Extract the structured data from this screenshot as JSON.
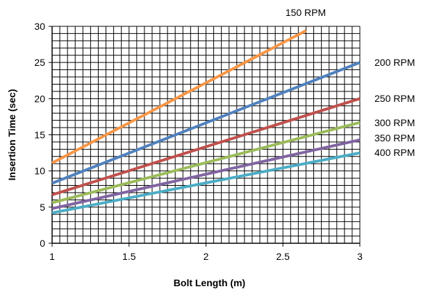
{
  "chart_data": {
    "type": "line",
    "title": "",
    "xlabel": "Bolt Length (m)",
    "ylabel": "Insertion Time (sec)",
    "xlim": [
      1,
      3
    ],
    "ylim": [
      0,
      30
    ],
    "x_ticks": [
      1,
      1.5,
      2,
      2.5,
      3
    ],
    "x_tick_labels": [
      "1",
      "1.5",
      "2",
      "2.5",
      "3"
    ],
    "y_ticks": [
      0,
      5,
      10,
      15,
      20,
      25,
      30
    ],
    "y_tick_labels": [
      "0",
      "5",
      "10",
      "15",
      "20",
      "25",
      "30"
    ],
    "grid": true,
    "legend": "inline labels at line ends",
    "series": [
      {
        "name": "150 RPM",
        "color": "#f79646",
        "x": [
          1,
          2.65
        ],
        "y": [
          11.1,
          29.4
        ]
      },
      {
        "name": "200 RPM",
        "color": "#4f81bd",
        "x": [
          1,
          3
        ],
        "y": [
          8.3,
          25.0
        ]
      },
      {
        "name": "250 RPM",
        "color": "#c0504d",
        "x": [
          1,
          3
        ],
        "y": [
          6.7,
          20.0
        ]
      },
      {
        "name": "300 RPM",
        "color": "#9bbb59",
        "x": [
          1,
          3
        ],
        "y": [
          5.6,
          16.7
        ]
      },
      {
        "name": "350 RPM",
        "color": "#8064a2",
        "x": [
          1,
          3
        ],
        "y": [
          4.8,
          14.3
        ]
      },
      {
        "name": "400 RPM",
        "color": "#4bacc6",
        "x": [
          1,
          3
        ],
        "y": [
          4.2,
          12.5
        ]
      }
    ]
  }
}
